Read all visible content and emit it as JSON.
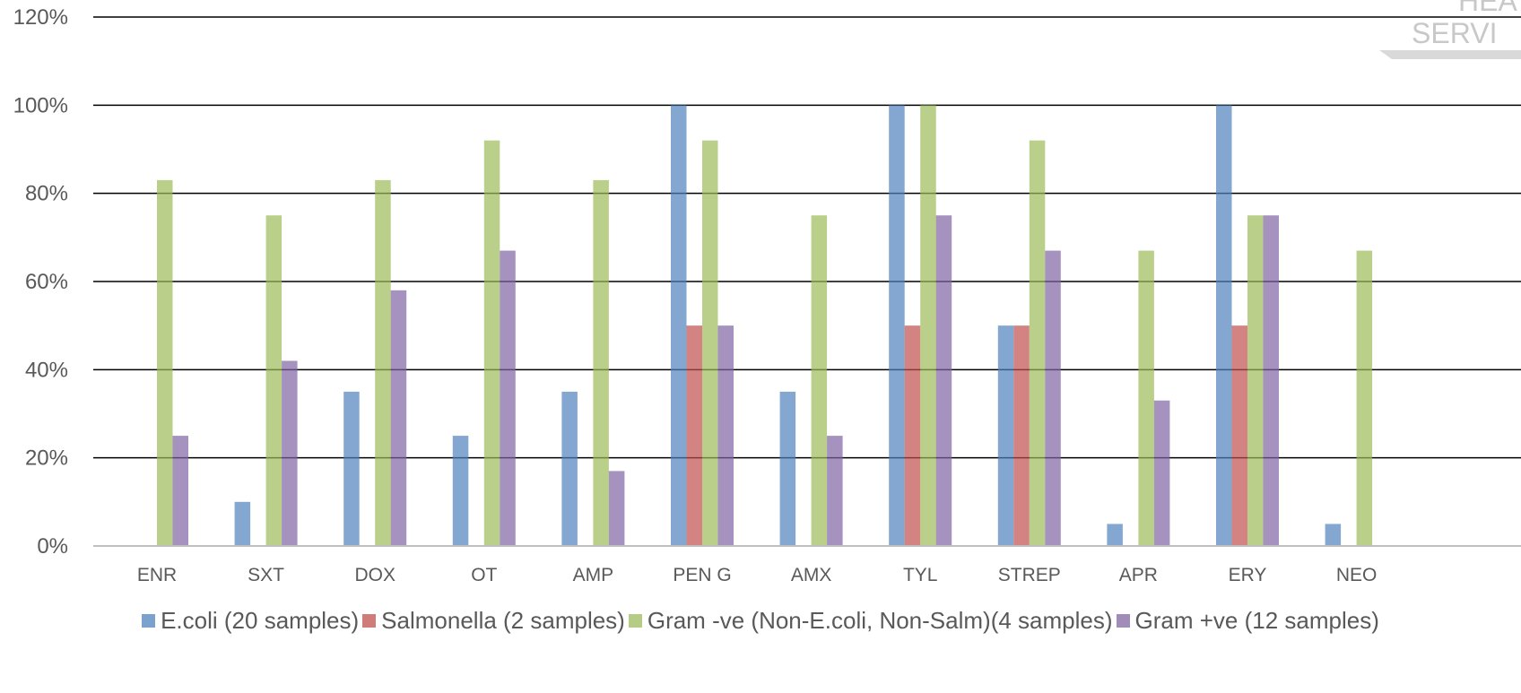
{
  "watermark": {
    "line1": "HEA",
    "line2": "SERVI"
  },
  "chart_data": {
    "type": "bar",
    "categories": [
      "ENR",
      "SXT",
      "DOX",
      "OT",
      "AMP",
      "PEN G",
      "AMX",
      "TYL",
      "STREP",
      "APR",
      "ERY",
      "NEO"
    ],
    "series": [
      {
        "name": "E.coli (20 samples)",
        "color": "#4f81bd",
        "values": [
          0,
          10,
          35,
          25,
          35,
          100,
          35,
          100,
          50,
          5,
          100,
          5
        ]
      },
      {
        "name": "Salmonella (2 samples)",
        "color": "#c0504d",
        "values": [
          0,
          0,
          0,
          0,
          0,
          50,
          0,
          50,
          50,
          0,
          50,
          0
        ]
      },
      {
        "name": "Gram -ve (Non-E.coli, Non-Salm)(4 samples)",
        "color": "#9bbb59",
        "values": [
          83,
          75,
          83,
          92,
          83,
          92,
          75,
          100,
          92,
          67,
          75,
          67
        ]
      },
      {
        "name": "Gram +ve (12 samples)",
        "color": "#8064a2",
        "values": [
          25,
          42,
          58,
          67,
          17,
          50,
          25,
          75,
          67,
          33,
          75,
          0
        ]
      }
    ],
    "ylim": [
      0,
      120
    ],
    "yticks": [
      "0%",
      "20%",
      "40%",
      "60%",
      "80%",
      "100%",
      "120%"
    ],
    "ytick_values": [
      0,
      20,
      40,
      60,
      80,
      100,
      120
    ],
    "grid": true,
    "legend_position": "bottom",
    "title": "",
    "xlabel": "",
    "ylabel": ""
  }
}
